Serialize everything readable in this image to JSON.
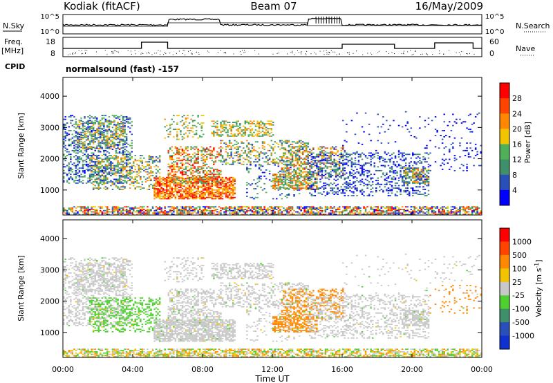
{
  "header": {
    "station": "Kodiak (fitACF)",
    "beam": "Beam 07",
    "date": "16/May/2009"
  },
  "strip_left": {
    "nsky_label": "N.Sky",
    "freq_label": "Freq.",
    "freq_unit": "[MHz]",
    "cpid_label": "CPID",
    "nsky_ticks": [
      "10^5",
      "10^0"
    ],
    "freq_ticks": [
      "18",
      "8"
    ]
  },
  "strip_right": {
    "nsearch_label": "N.Search",
    "nave_label": "Nave",
    "nsearch_ticks": [
      "10^5",
      "10^0"
    ],
    "nave_ticks": [
      "60",
      "0"
    ]
  },
  "cpid_text": "normalsound (fast) -157",
  "colors": {
    "power_scale": [
      "#0000ff",
      "#2a4fb8",
      "#3f8f6b",
      "#4fb05a",
      "#f2c300",
      "#ff8800",
      "#ff4400",
      "#ff0000"
    ],
    "velocity_scale": [
      "#1030d0",
      "#2a4fb8",
      "#3f8f6b",
      "#4fd030",
      "#c8c8c8",
      "#f2c300",
      "#ff8800",
      "#ff4400",
      "#ff0000"
    ]
  },
  "chart_data": [
    {
      "type": "heatmap",
      "name": "power",
      "ylabel": "Slant Range [km]",
      "xlabel": "",
      "colorbar_label": "Power [dB]",
      "colorbar_ticks": [
        "28",
        "24",
        "20",
        "16",
        "12",
        "8",
        "4"
      ],
      "x_ticks": [
        "00:00",
        "04:00",
        "08:00",
        "12:00",
        "16:00",
        "20:00",
        "00:00"
      ],
      "y_ticks": [
        "4000",
        "3000",
        "2000",
        "1000"
      ],
      "ylim": [
        200,
        4600
      ],
      "xlim": [
        0,
        24
      ]
    },
    {
      "type": "heatmap",
      "name": "velocity",
      "ylabel": "Slant Range [km]",
      "xlabel": "Time UT",
      "colorbar_label": "Velocity [m s-1]",
      "colorbar_unit_main": "Velocity [m s",
      "colorbar_unit_exp": "-1",
      "colorbar_unit_end": "]",
      "colorbar_ticks": [
        "1000",
        "500",
        "100",
        "25",
        "-25",
        "-100",
        "-500",
        "-1000"
      ],
      "x_ticks": [
        "00:00",
        "04:00",
        "08:00",
        "12:00",
        "16:00",
        "20:00",
        "00:00"
      ],
      "y_ticks": [
        "4000",
        "3000",
        "2000",
        "1000"
      ],
      "ylim": [
        200,
        4600
      ],
      "xlim": [
        0,
        24
      ]
    }
  ]
}
